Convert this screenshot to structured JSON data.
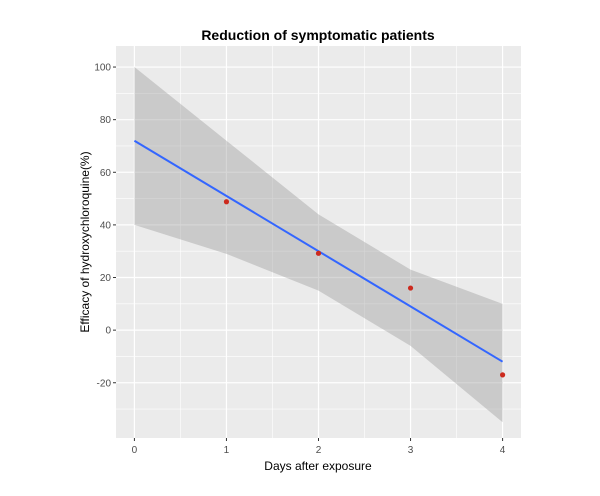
{
  "chart_data": {
    "type": "scatter",
    "title": "Reduction of symptomatic patients",
    "xlabel": "Days after exposure",
    "ylabel": "Efficacy of hydroxychloroquine(%)",
    "xlim": [
      -0.2,
      4.2
    ],
    "ylim": [
      -41,
      108
    ],
    "x_ticks": [
      0,
      1,
      2,
      3,
      4
    ],
    "x_tick_labels": [
      "0",
      "1",
      "2",
      "3",
      "4"
    ],
    "y_ticks": [
      -20,
      0,
      20,
      40,
      60,
      80,
      100
    ],
    "y_tick_labels": [
      "-20",
      "0",
      "20",
      "40",
      "60",
      "80",
      "100"
    ],
    "grid": true,
    "legend": "none",
    "series": [
      {
        "name": "observed",
        "kind": "points",
        "x": [
          1,
          2,
          3,
          4
        ],
        "y": [
          48.8,
          29.2,
          16,
          -17
        ],
        "color": "#cc2a1e"
      },
      {
        "name": "linear fit",
        "kind": "line",
        "x": [
          0,
          4
        ],
        "y": [
          72,
          -12
        ],
        "color": "#3366ff"
      },
      {
        "name": "confidence band",
        "kind": "ribbon",
        "x": [
          0,
          1,
          2,
          3,
          4
        ],
        "upper": [
          100,
          72,
          44,
          23,
          10
        ],
        "lower": [
          40,
          29,
          15,
          -6,
          -35
        ],
        "color": "#999999"
      }
    ],
    "colors": {
      "panel_background": "#ebebeb",
      "grid_major": "#ffffff",
      "tick_text": "#4d4d4d"
    }
  }
}
